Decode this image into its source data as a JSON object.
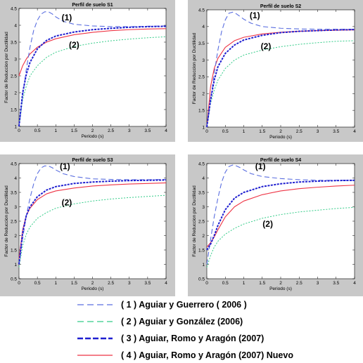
{
  "chart_data": {
    "type": "line",
    "x_axis": {
      "label": "Periodo (s)",
      "range": [
        0,
        4
      ],
      "ticks": [
        "0",
        "0.5",
        "1",
        "1.5",
        "2",
        "2.5",
        "3",
        "3.5",
        "4"
      ]
    },
    "y_axis": {
      "label": "Factor de Reduccion por Ductilidad",
      "range": [
        1,
        4.5
      ]
    },
    "legend": {
      "placement": "bottom",
      "entries": [
        {
          "label": "( 1 ) Aguiar y Guerrero ( 2006 )",
          "color": "#5a6ee0",
          "style": "long-dash"
        },
        {
          "label": "( 2 ) Aguiar y González (2006)",
          "color": "#33cc88",
          "style": "long-dash"
        },
        {
          "label": "( 3 ) Aguiar, Romo y Aragón (2007)",
          "color": "#1f1fd0",
          "style": "thick-dash"
        },
        {
          "label": "( 4 ) Aguiar, Romo y Aragón (2007) Nuevo",
          "color": "#ee3344",
          "style": "solid"
        }
      ]
    },
    "panels": [
      {
        "title": "Perfil de suelo S1",
        "y_min": 1,
        "y_max": 4.5,
        "y_ticks": [
          "1",
          "1.5",
          "2",
          "2.5",
          "3",
          "3.5",
          "4",
          "4.5"
        ],
        "annotations": [
          {
            "text": "(1)",
            "x": 1.3,
            "y": 4.15
          },
          {
            "text": "(2)",
            "x": 1.5,
            "y": 3.33
          }
        ],
        "series": [
          {
            "name": "(1)",
            "x": [
              0,
              0.1,
              0.2,
              0.3,
              0.4,
              0.5,
              0.6,
              0.7,
              0.8,
              0.9,
              1.0,
              1.2,
              1.5,
              2.0,
              2.5,
              3.0,
              3.5,
              4.0
            ],
            "y": [
              1.0,
              1.9,
              2.7,
              3.35,
              3.85,
              4.15,
              4.33,
              4.4,
              4.4,
              4.34,
              4.25,
              4.12,
              4.03,
              3.98,
              3.96,
              3.96,
              3.97,
              3.98
            ]
          },
          {
            "name": "(2)",
            "x": [
              0,
              0.1,
              0.2,
              0.3,
              0.5,
              0.75,
              1.0,
              1.5,
              2.0,
              2.5,
              3.0,
              3.5,
              4.0
            ],
            "y": [
              1.0,
              1.8,
              2.2,
              2.5,
              2.8,
              3.05,
              3.2,
              3.37,
              3.47,
              3.54,
              3.59,
              3.63,
              3.66
            ]
          },
          {
            "name": "(3)",
            "x": [
              0,
              0.1,
              0.2,
              0.3,
              0.5,
              0.75,
              1.0,
              1.5,
              2.0,
              2.5,
              3.0,
              3.5,
              4.0
            ],
            "y": [
              1.0,
              2.0,
              2.55,
              2.9,
              3.3,
              3.55,
              3.68,
              3.8,
              3.87,
              3.91,
              3.94,
              3.96,
              3.97
            ]
          },
          {
            "name": "(4)",
            "x": [
              0,
              0.1,
              0.2,
              0.3,
              0.5,
              0.75,
              1.0,
              1.5,
              2.0,
              2.5,
              3.0,
              3.5,
              4.0
            ],
            "y": [
              2.5,
              2.8,
              3.0,
              3.15,
              3.35,
              3.5,
              3.6,
              3.72,
              3.79,
              3.84,
              3.87,
              3.89,
              3.9
            ]
          }
        ]
      },
      {
        "title": "Perfil de suelo S2",
        "y_min": 1,
        "y_max": 4.5,
        "y_ticks": [
          "1",
          "1.5",
          "2",
          "2.5",
          "3",
          "3.5",
          "4",
          "4.5"
        ],
        "annotations": [
          {
            "text": "(1)",
            "x": 1.3,
            "y": 4.25
          },
          {
            "text": "(2)",
            "x": 1.6,
            "y": 3.33
          }
        ],
        "series": [
          {
            "name": "(1)",
            "x": [
              0,
              0.1,
              0.2,
              0.3,
              0.4,
              0.5,
              0.6,
              0.7,
              0.8,
              0.9,
              1.0,
              1.2,
              1.5,
              2.0,
              2.5,
              3.0,
              3.5,
              4.0
            ],
            "y": [
              1.0,
              1.8,
              2.6,
              3.3,
              3.85,
              4.2,
              4.4,
              4.43,
              4.38,
              4.3,
              4.22,
              4.1,
              4.0,
              3.95,
              3.93,
              3.92,
              3.92,
              3.92
            ]
          },
          {
            "name": "(2)",
            "x": [
              0,
              0.1,
              0.2,
              0.3,
              0.5,
              0.75,
              1.0,
              1.5,
              2.0,
              2.5,
              3.0,
              3.5,
              4.0
            ],
            "y": [
              1.0,
              1.7,
              2.1,
              2.4,
              2.75,
              3.0,
              3.15,
              3.3,
              3.4,
              3.47,
              3.52,
              3.56,
              3.58
            ]
          },
          {
            "name": "(3)",
            "x": [
              0,
              0.1,
              0.2,
              0.3,
              0.5,
              0.75,
              1.0,
              1.5,
              2.0,
              2.5,
              3.0,
              3.5,
              4.0
            ],
            "y": [
              1.0,
              1.8,
              2.4,
              2.8,
              3.2,
              3.45,
              3.6,
              3.74,
              3.82,
              3.86,
              3.88,
              3.9,
              3.91
            ]
          },
          {
            "name": "(4)",
            "x": [
              0,
              0.1,
              0.2,
              0.3,
              0.5,
              0.75,
              1.0,
              1.5,
              2.0,
              2.5,
              3.0,
              3.5,
              4.0
            ],
            "y": [
              1.0,
              2.2,
              2.75,
              3.05,
              3.38,
              3.58,
              3.68,
              3.78,
              3.83,
              3.86,
              3.88,
              3.89,
              3.9
            ]
          }
        ]
      },
      {
        "title": "Perfil de suelo S3",
        "y_min": 0.5,
        "y_max": 4.5,
        "y_ticks": [
          "0.5",
          "1",
          "1.5",
          "2",
          "2.5",
          "3",
          "3.5",
          "4",
          "4.5"
        ],
        "annotations": [
          {
            "text": "(1)",
            "x": 1.25,
            "y": 4.3
          },
          {
            "text": "(2)",
            "x": 1.3,
            "y": 3.05
          }
        ],
        "series": [
          {
            "name": "(1)",
            "x": [
              0,
              0.1,
              0.2,
              0.3,
              0.4,
              0.5,
              0.6,
              0.7,
              0.8,
              0.9,
              1.0,
              1.2,
              1.5,
              2.0,
              2.5,
              3.0,
              3.5,
              4.0
            ],
            "y": [
              1.0,
              1.9,
              2.7,
              3.3,
              3.8,
              4.15,
              4.35,
              4.42,
              4.42,
              4.36,
              4.28,
              4.15,
              4.05,
              3.97,
              3.95,
              3.94,
              3.94,
              3.95
            ]
          },
          {
            "name": "(2)",
            "x": [
              0,
              0.1,
              0.2,
              0.3,
              0.5,
              0.75,
              1.0,
              1.5,
              2.0,
              2.5,
              3.0,
              3.5,
              4.0
            ],
            "y": [
              0.9,
              1.65,
              2.05,
              2.3,
              2.6,
              2.8,
              2.95,
              3.1,
              3.2,
              3.27,
              3.32,
              3.36,
              3.4
            ]
          },
          {
            "name": "(3)",
            "x": [
              0,
              0.1,
              0.2,
              0.3,
              0.5,
              0.75,
              1.0,
              1.5,
              2.0,
              2.5,
              3.0,
              3.5,
              4.0
            ],
            "y": [
              1.0,
              2.1,
              2.7,
              3.0,
              3.35,
              3.58,
              3.7,
              3.81,
              3.86,
              3.89,
              3.91,
              3.92,
              3.93
            ]
          },
          {
            "name": "(4)",
            "x": [
              0,
              0.1,
              0.2,
              0.3,
              0.5,
              0.75,
              1.0,
              1.5,
              2.0,
              2.5,
              3.0,
              3.5,
              4.0
            ],
            "y": [
              1.2,
              2.2,
              2.7,
              2.95,
              3.25,
              3.45,
              3.55,
              3.65,
              3.72,
              3.76,
              3.79,
              3.81,
              3.83
            ]
          }
        ]
      },
      {
        "title": "Perfil de suelo S4",
        "y_min": 0.5,
        "y_max": 4.5,
        "y_ticks": [
          "0.5",
          "1",
          "1.5",
          "2",
          "2.5",
          "3",
          "3.5",
          "4",
          "4.5"
        ],
        "annotations": [
          {
            "text": "(1)",
            "x": 1.45,
            "y": 4.3
          },
          {
            "text": "(2)",
            "x": 1.65,
            "y": 2.3
          }
        ],
        "series": [
          {
            "name": "(1)",
            "x": [
              0,
              0.1,
              0.2,
              0.3,
              0.4,
              0.5,
              0.6,
              0.7,
              0.8,
              0.9,
              1.0,
              1.2,
              1.5,
              2.0,
              2.5,
              3.0,
              3.5,
              4.0
            ],
            "y": [
              1.0,
              1.85,
              2.65,
              3.3,
              3.85,
              4.2,
              4.4,
              4.45,
              4.42,
              4.36,
              4.28,
              4.15,
              4.05,
              3.98,
              3.94,
              3.92,
              3.92,
              3.92
            ]
          },
          {
            "name": "(2)",
            "x": [
              0,
              0.1,
              0.2,
              0.3,
              0.5,
              0.75,
              1.0,
              1.5,
              2.0,
              2.5,
              3.0,
              3.5,
              4.0
            ],
            "y": [
              0.9,
              1.3,
              1.6,
              1.8,
              2.05,
              2.25,
              2.4,
              2.6,
              2.73,
              2.82,
              2.88,
              2.94,
              2.98
            ]
          },
          {
            "name": "(3)",
            "x": [
              0,
              0.1,
              0.2,
              0.3,
              0.5,
              0.75,
              1.0,
              1.5,
              2.0,
              2.5,
              3.0,
              3.5,
              4.0
            ],
            "y": [
              1.5,
              1.7,
              2.0,
              2.35,
              2.9,
              3.3,
              3.5,
              3.7,
              3.8,
              3.86,
              3.89,
              3.91,
              3.92
            ]
          },
          {
            "name": "(4)",
            "x": [
              0,
              0.1,
              0.2,
              0.3,
              0.5,
              0.75,
              1.0,
              1.5,
              2.0,
              2.5,
              3.0,
              3.5,
              4.0
            ],
            "y": [
              1.6,
              1.75,
              1.95,
              2.2,
              2.65,
              3.0,
              3.2,
              3.42,
              3.55,
              3.63,
              3.68,
              3.72,
              3.75
            ]
          }
        ]
      }
    ]
  }
}
